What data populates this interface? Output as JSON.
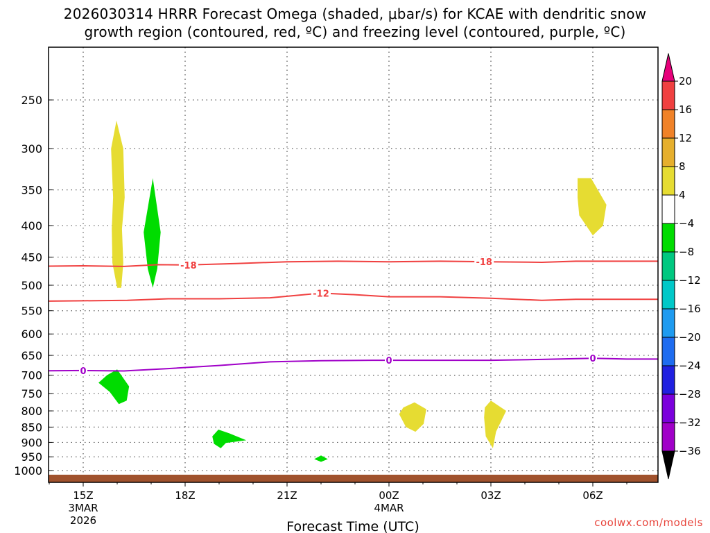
{
  "chart_data": {
    "type": "time-height cross section",
    "title_line1": "2026030314 HRRR Forecast Omega (shaded, μbar/s) for KCAE with dendritic snow",
    "title_line2": "growth region (contoured, red, ºC) and freezing level (contoured, purple, ºC)",
    "xlabel": "Forecast Time (UTC)",
    "ylabel": "",
    "y_axis": {
      "scale": "log-pressure",
      "units": "hPa",
      "inverted": true,
      "ticks": [
        250,
        300,
        350,
        400,
        450,
        500,
        550,
        600,
        650,
        700,
        750,
        800,
        850,
        900,
        950,
        1000
      ]
    },
    "x_axis": {
      "units": "hours since 2026-03-03 15Z",
      "ticks": [
        {
          "hour": 0,
          "label": "15Z",
          "sub1": "3MAR",
          "sub2": "2026"
        },
        {
          "hour": 3,
          "label": "18Z",
          "sub1": "",
          "sub2": ""
        },
        {
          "hour": 6,
          "label": "21Z",
          "sub1": "",
          "sub2": ""
        },
        {
          "hour": 9,
          "label": "00Z",
          "sub1": "4MAR",
          "sub2": ""
        },
        {
          "hour": 12,
          "label": "03Z",
          "sub1": "",
          "sub2": ""
        },
        {
          "hour": 15,
          "label": "06Z",
          "sub1": "",
          "sub2": ""
        }
      ]
    },
    "grid": true,
    "contours": [
      {
        "name": "-18",
        "label": "-18",
        "color": "#f04040",
        "label_at": [
          3.1,
          11.8
        ]
      },
      {
        "name": "-12",
        "label": "-12",
        "color": "#f04040",
        "label_at": [
          7.0
        ]
      },
      {
        "name": "0",
        "label": "0",
        "color": "#a000c8",
        "label_at": [
          0.0,
          9.0,
          15.0
        ]
      }
    ],
    "colorbar": {
      "levels": [
        -36,
        -32,
        -28,
        -24,
        -20,
        -16,
        -12,
        -8,
        -4,
        4,
        8,
        12,
        16,
        20
      ],
      "labels": [
        "−36",
        "−32",
        "−28",
        "−24",
        "−20",
        "−16",
        "−12",
        "−8",
        "−4",
        "4",
        "8",
        "12",
        "16",
        "20"
      ],
      "colors": [
        "#9b9b9b",
        "#a000c8",
        "#7b00dc",
        "#2020e0",
        "#1e6cf0",
        "#1e9bf0",
        "#00c8c8",
        "#00c880",
        "#00dc00",
        "#ffffff",
        "#e6dc32",
        "#e6af2d",
        "#f08228",
        "#f04040"
      ],
      "under_color": "#000000",
      "over_color": "#e6007a"
    },
    "omega_features": [
      {
        "sign": "upward",
        "color": "#e6dc32",
        "pressure_range": [
          270,
          505
        ],
        "hour_center": 1.0
      },
      {
        "sign": "downward",
        "color": "#00dc00",
        "pressure_range": [
          335,
          505
        ],
        "hour_center": 2.05
      },
      {
        "sign": "downward",
        "color": "#00dc00",
        "pressure_range": [
          685,
          780
        ],
        "hour_center": 0.95
      },
      {
        "sign": "downward",
        "color": "#00dc00",
        "pressure_range": [
          858,
          920
        ],
        "hour_center": 4.3
      },
      {
        "sign": "downward",
        "color": "#00dc00",
        "pressure_range": [
          945,
          968
        ],
        "hour_center": 7.0
      },
      {
        "sign": "upward",
        "color": "#e6dc32",
        "pressure_range": [
          775,
          865
        ],
        "hour_center": 9.8
      },
      {
        "sign": "upward",
        "color": "#e6dc32",
        "pressure_range": [
          770,
          920
        ],
        "hour_center": 12.15
      },
      {
        "sign": "upward",
        "color": "#e6dc32",
        "pressure_range": [
          335,
          415
        ],
        "hour_center": 15.0
      }
    ],
    "terrain_color": "#a0522d",
    "watermark": "coolwx.com/models"
  }
}
